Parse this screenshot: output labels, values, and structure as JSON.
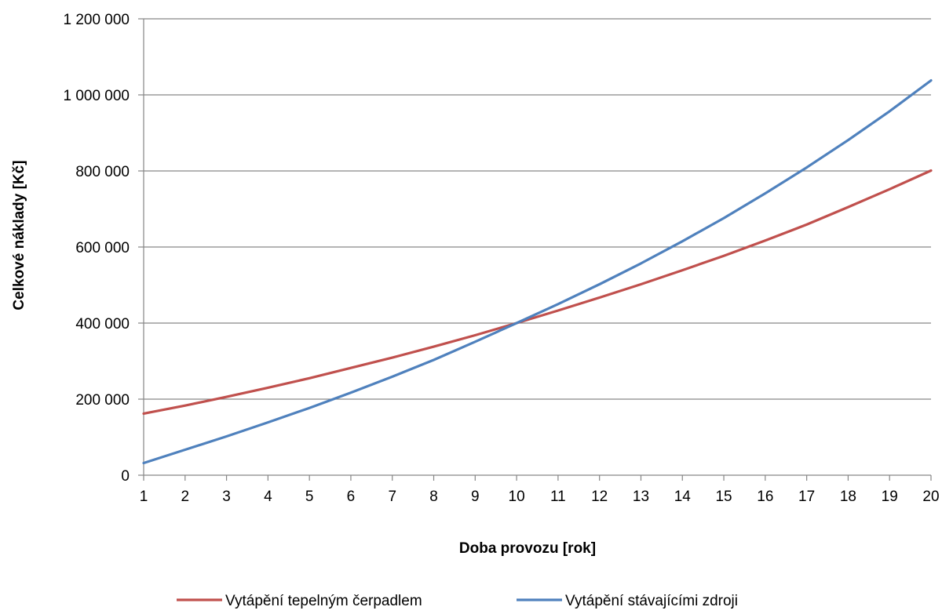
{
  "chart_data": {
    "type": "line",
    "xlabel": "Doba provozu [rok]",
    "ylabel": "Celkové  náklady [Kč]",
    "x": [
      1,
      2,
      3,
      4,
      5,
      6,
      7,
      8,
      9,
      10,
      11,
      12,
      13,
      14,
      15,
      16,
      17,
      18,
      19,
      20
    ],
    "x_tick_labels": [
      "1",
      "2",
      "3",
      "4",
      "5",
      "6",
      "7",
      "8",
      "9",
      "10",
      "11",
      "12",
      "13",
      "14",
      "15",
      "16",
      "17",
      "18",
      "19",
      "20"
    ],
    "ylim": [
      0,
      1200000
    ],
    "y_tick_labels": [
      "0",
      "200 000",
      "400 000",
      "600 000",
      "800 000",
      "1 000 000",
      "1 200 000"
    ],
    "y_ticks": [
      0,
      200000,
      400000,
      600000,
      800000,
      1000000,
      1200000
    ],
    "grid": "horizontal",
    "legend_position": "bottom",
    "series": [
      {
        "name": "Vytápění tepelným čerpadlem",
        "color": "#c0504d",
        "values": [
          162000,
          183000,
          206000,
          230000,
          255000,
          282000,
          309000,
          338000,
          368000,
          400000,
          433000,
          467000,
          502000,
          539000,
          577000,
          617000,
          659000,
          705000,
          752000,
          801000
        ]
      },
      {
        "name": "Vytápění stávajícími zdroji",
        "color": "#4f81bd",
        "values": [
          32000,
          67000,
          102000,
          139000,
          177000,
          217000,
          259000,
          303000,
          351000,
          400000,
          450000,
          502000,
          557000,
          615000,
          676000,
          741000,
          809000,
          881000,
          957000,
          1038000
        ]
      }
    ]
  }
}
